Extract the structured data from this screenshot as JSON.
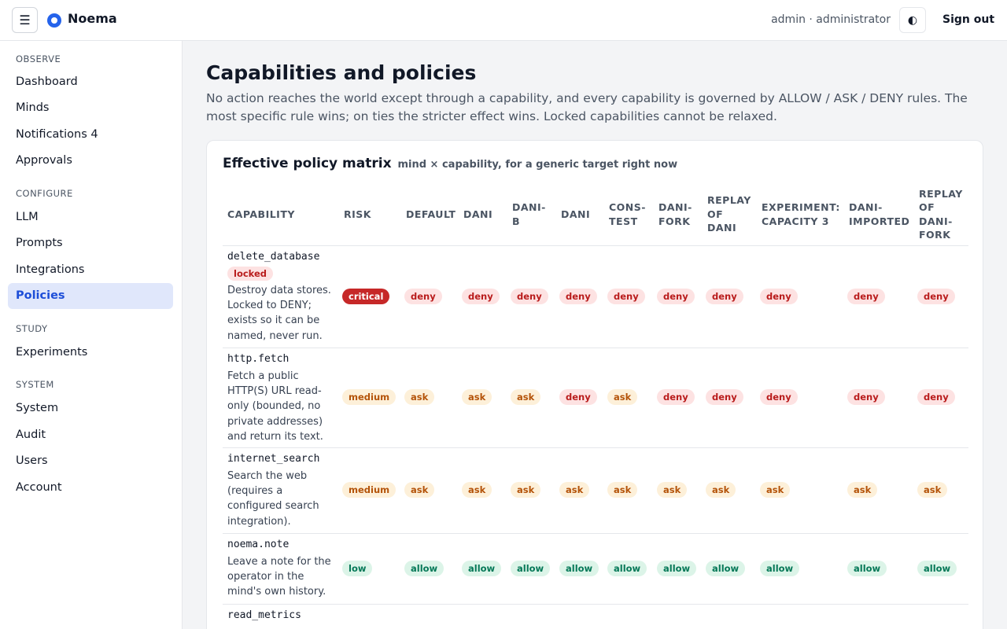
{
  "topbar": {
    "menu_glyph": "☰",
    "brand": "Noema",
    "user_label": "admin · administrator",
    "theme_glyph": "◐",
    "sign_out": "Sign out"
  },
  "sidebar": {
    "groups": [
      {
        "label": "OBSERVE",
        "items": [
          "Dashboard",
          "Minds",
          "Notifications 4",
          "Approvals"
        ]
      },
      {
        "label": "CONFIGURE",
        "items": [
          "LLM",
          "Prompts",
          "Integrations",
          "Policies"
        ]
      },
      {
        "label": "STUDY",
        "items": [
          "Experiments"
        ]
      },
      {
        "label": "SYSTEM",
        "items": [
          "System",
          "Audit",
          "Users",
          "Account"
        ]
      }
    ],
    "active": "Policies"
  },
  "main": {
    "title": "Capabilities and policies",
    "description": "No action reaches the world except through a capability, and every capability is governed by ALLOW / ASK / DENY rules. The most specific rule wins; on ties the stricter effect wins. Locked capabilities cannot be relaxed."
  },
  "matrix": {
    "title": "Effective policy matrix",
    "subtitle": "mind × capability, for a generic target right now",
    "columns": [
      "CAPABILITY",
      "RISK",
      "DEFAULT",
      "DANI",
      "DANI-\nB",
      "DANI",
      "CONS-\nTEST",
      "DANI-\nFORK",
      "REPLAY\nOF\nDANI",
      "EXPERIMENT:\nCAPACITY 3",
      "DANI-\nIMPORTED",
      "REPLAY\nOF\nDANI-\nFORK"
    ],
    "locked_label": "locked",
    "rows": [
      {
        "name": "delete_database",
        "locked": true,
        "description": "Destroy data stores. Locked to DENY; exists so it can be named, never run.",
        "risk": "critical",
        "cells": [
          "deny",
          "deny",
          "deny",
          "deny",
          "deny",
          "deny",
          "deny",
          "deny",
          "deny",
          "deny"
        ]
      },
      {
        "name": "http.fetch",
        "locked": false,
        "description": "Fetch a public HTTP(S) URL read-only (bounded, no private addresses) and return its text.",
        "risk": "medium",
        "cells": [
          "ask",
          "ask",
          "ask",
          "deny",
          "ask",
          "deny",
          "deny",
          "deny",
          "deny",
          "deny"
        ]
      },
      {
        "name": "internet_search",
        "locked": false,
        "description": "Search the web (requires a configured search integration).",
        "risk": "medium",
        "cells": [
          "ask",
          "ask",
          "ask",
          "ask",
          "ask",
          "ask",
          "ask",
          "ask",
          "ask",
          "ask"
        ]
      },
      {
        "name": "noema.note",
        "locked": false,
        "description": "Leave a note for the operator in the mind's own history.",
        "risk": "low",
        "cells": [
          "allow",
          "allow",
          "allow",
          "allow",
          "allow",
          "allow",
          "allow",
          "allow",
          "allow",
          "allow"
        ]
      },
      {
        "name": "read_metrics",
        "locked": false,
        "description": "",
        "risk": "",
        "cells": []
      }
    ]
  }
}
